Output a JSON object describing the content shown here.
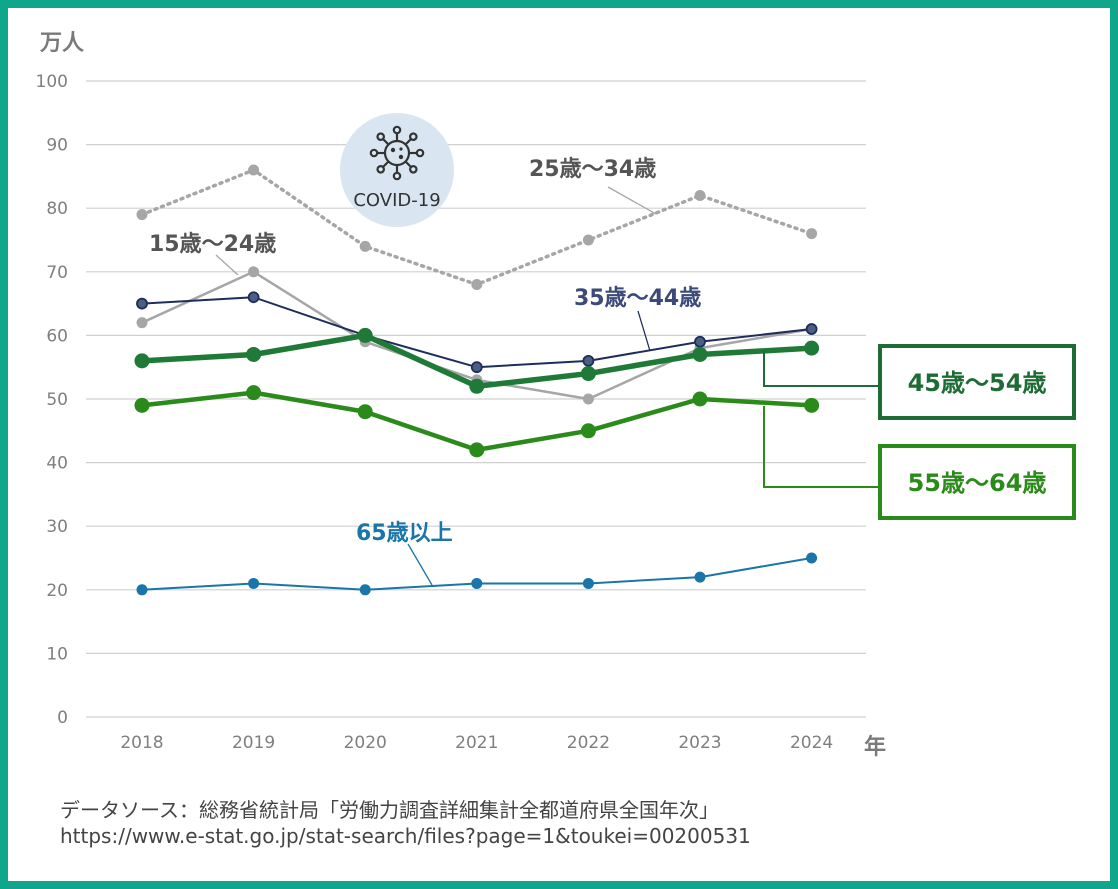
{
  "chart_data": {
    "type": "line",
    "y_unit": "万人",
    "x_unit": "年",
    "ylim": [
      0,
      100
    ],
    "y_ticks": [
      "0",
      "10",
      "20",
      "30",
      "40",
      "50",
      "60",
      "70",
      "80",
      "90",
      "100"
    ],
    "categories": [
      "2018",
      "2019",
      "2020",
      "2021",
      "2022",
      "2023",
      "2024"
    ],
    "grid": true,
    "series": [
      {
        "name": "25歳～34歳",
        "values": [
          79,
          86,
          74,
          68,
          75,
          82,
          76
        ],
        "color": "#a6a6a6"
      },
      {
        "name": "15歳～24歳",
        "values": [
          62,
          70,
          59,
          53,
          50,
          58,
          61
        ],
        "color": "#a6a6a6"
      },
      {
        "name": "35歳～44歳",
        "values": [
          65,
          66,
          60,
          55,
          56,
          59,
          61
        ],
        "color": "#1f2d5c"
      },
      {
        "name": "45歳～54歳",
        "values": [
          56,
          57,
          60,
          52,
          54,
          57,
          58
        ],
        "color": "#1e7a36"
      },
      {
        "name": "55歳～64歳",
        "values": [
          49,
          51,
          48,
          42,
          45,
          50,
          49
        ],
        "color": "#2a8a1a"
      },
      {
        "name": "65歳以上",
        "values": [
          20,
          21,
          20,
          21,
          21,
          22,
          25
        ],
        "color": "#1a75a8"
      }
    ],
    "annotation": "COVID-19"
  },
  "source": {
    "line1": "データソース：総務省統計局「労働力調査詳細集計全都道府県全国年次」",
    "line2": "https://www.e-stat.go.jp/stat-search/files?page=1&toukei=00200531"
  },
  "icons": {
    "covid": "virus-icon"
  },
  "colors": {
    "frame": "#0fa68b"
  }
}
